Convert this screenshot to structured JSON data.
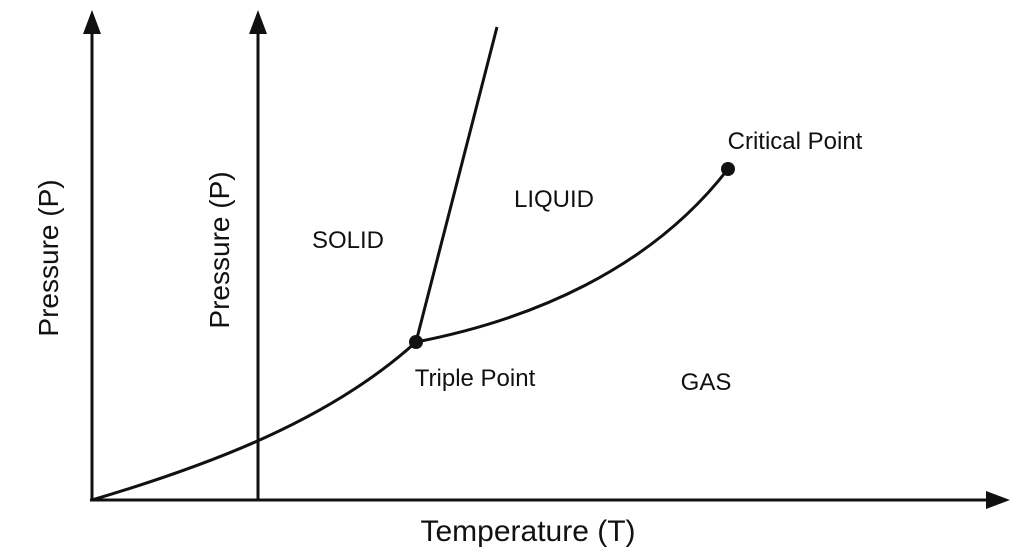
{
  "diagram": {
    "type": "phase-diagram",
    "x_axis_label": "Temperature (T)",
    "y_axis_label_outer": "Pressure (P)",
    "y_axis_label_inner": "Pressure (P)",
    "regions": {
      "solid": "SOLID",
      "liquid": "LIQUID",
      "gas": "GAS"
    },
    "points": {
      "triple": "Triple Point",
      "critical": "Critical Point"
    },
    "colors": {
      "line": "#111111",
      "background": "#ffffff"
    }
  }
}
